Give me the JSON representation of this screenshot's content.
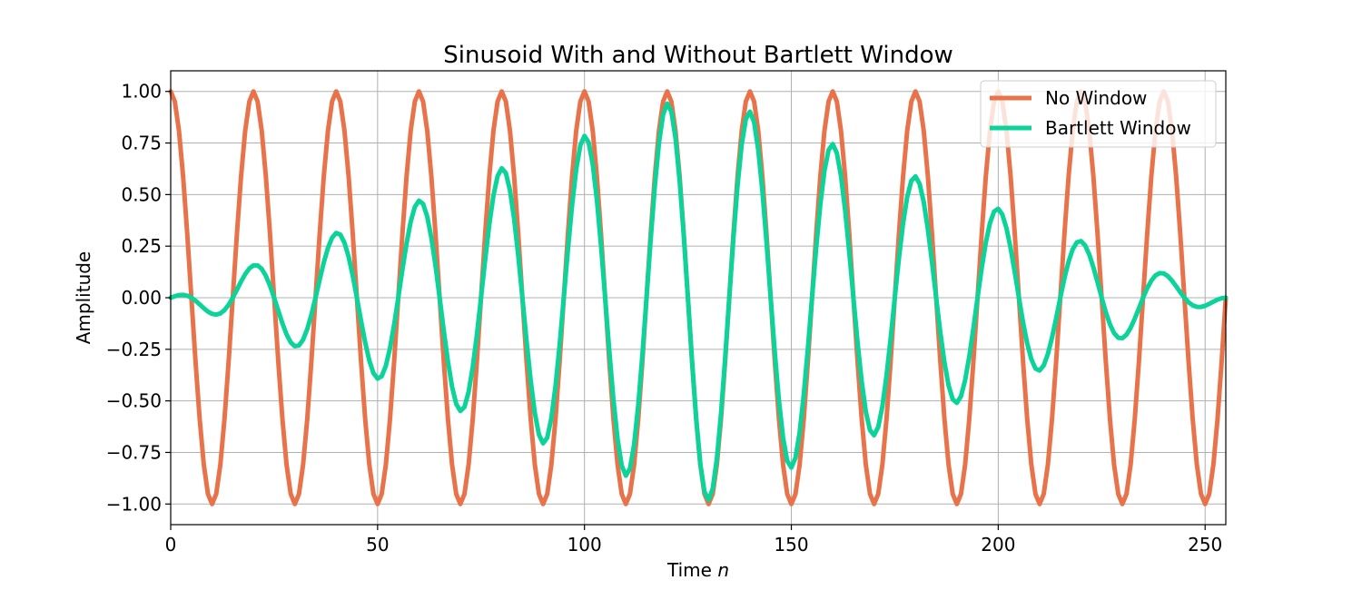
{
  "chart_data": {
    "type": "line",
    "title": "Sinusoid With and Without Bartlett Window",
    "xlabel": "Time",
    "xlabel_var": "n",
    "ylabel": "Amplitude",
    "xlim": [
      0,
      255
    ],
    "ylim": [
      -1.1,
      1.1
    ],
    "x_ticks": [
      0,
      50,
      100,
      150,
      200,
      250
    ],
    "y_ticks": [
      1.0,
      0.75,
      0.5,
      0.25,
      0.0,
      -0.25,
      -0.5,
      -0.75,
      -1.0
    ],
    "x_tick_labels": [
      "0",
      "50",
      "100",
      "150",
      "200",
      "250"
    ],
    "y_tick_labels": [
      "1.00",
      "0.75",
      "0.50",
      "0.25",
      "0.00",
      "−0.25",
      "−0.50",
      "−0.75",
      "−1.00"
    ],
    "grid": true,
    "legend_position": "top-right",
    "n_points": 256,
    "series": [
      {
        "name": "No Window",
        "color": "#E8734A",
        "formula": "cos(2*pi*n/20)"
      },
      {
        "name": "Bartlett Window",
        "color": "#0CD39A",
        "formula": "cos(2*pi*n/20) * bartlett(256)"
      }
    ]
  }
}
